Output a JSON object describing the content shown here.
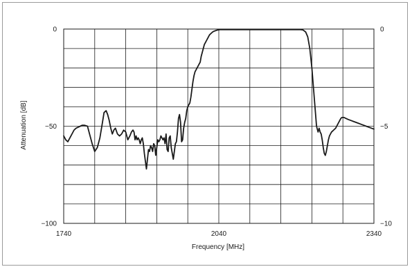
{
  "chart_data": {
    "type": "line",
    "title": "",
    "xlabel": "Frequency [MHz]",
    "ylabel": "Attenuation [dB]",
    "xlim": [
      1740,
      2340
    ],
    "ylim": [
      -100,
      0
    ],
    "y2lim": [
      -10,
      0
    ],
    "grid": true,
    "x_tick_labels": [
      "1740",
      "2040",
      "2340"
    ],
    "y_tick_labels": [
      "0",
      "−50",
      "−100"
    ],
    "y2_tick_labels": [
      "0",
      "−5",
      "−10"
    ],
    "colors": {
      "line": "#1a1a1a",
      "grid": "#1a1a1a"
    },
    "series": [
      {
        "x": [
          1740,
          1744,
          1748,
          1752,
          1756,
          1760,
          1764,
          1768,
          1772,
          1776,
          1780,
          1786,
          1790,
          1795,
          1800,
          1805,
          1810,
          1815,
          1818,
          1822,
          1825,
          1828,
          1831,
          1834,
          1837,
          1840,
          1844,
          1848,
          1852,
          1856,
          1860,
          1864,
          1868,
          1871,
          1874,
          1876,
          1878,
          1880,
          1882,
          1884,
          1886,
          1888,
          1890,
          1892,
          1894,
          1896,
          1898,
          1900,
          1902,
          1904,
          1906,
          1908,
          1910,
          1912,
          1914,
          1916,
          1918,
          1920,
          1922,
          1924,
          1926,
          1928,
          1930,
          1932,
          1934,
          1936,
          1938,
          1940,
          1942,
          1944,
          1946,
          1948,
          1950,
          1952,
          1954,
          1956,
          1958,
          1960,
          1962,
          1964,
          1966,
          1968,
          1970,
          1972,
          1974,
          1976,
          1978,
          1980,
          1982,
          1984,
          1986,
          1988,
          1990,
          1992,
          1994,
          1996,
          1998,
          2000,
          2002,
          2004,
          2006,
          2008,
          2010,
          2012,
          2014,
          2016,
          2018,
          2020,
          2022,
          2024,
          2026,
          2028,
          2030,
          2032,
          2034,
          2036,
          2038,
          2040,
          2042,
          2044,
          2046,
          2048,
          2050,
          2052,
          2054,
          2056,
          2058,
          2060,
          2062,
          2064,
          2066,
          2068,
          2070,
          2072,
          2074,
          2076,
          2078,
          2080,
          2082,
          2084,
          2086,
          2088,
          2090,
          2095,
          2100,
          2110,
          2120,
          2130,
          2140,
          2150,
          2160,
          2170,
          2180,
          2190,
          2198,
          2203,
          2208,
          2212,
          2216,
          2220,
          2223,
          2226,
          2229,
          2232,
          2234,
          2236,
          2238,
          2240,
          2242,
          2244,
          2246,
          2248,
          2250,
          2252,
          2254,
          2256,
          2258,
          2260,
          2262,
          2264,
          2266,
          2268,
          2270,
          2272,
          2274,
          2276,
          2278,
          2282,
          2286,
          2290,
          2295,
          2300,
          2305,
          2310,
          2315,
          2320,
          2325,
          2330,
          2335,
          2340
        ],
        "y": [
          -55,
          -57,
          -58,
          -56,
          -54,
          -52,
          -51,
          -50.5,
          -50,
          -49.5,
          -49.5,
          -50,
          -54,
          -59,
          -63,
          -61,
          -56,
          -48,
          -43,
          -42,
          -44,
          -47,
          -51,
          -54,
          -52,
          -51,
          -54,
          -55,
          -54,
          -52,
          -53,
          -57,
          -55,
          -53,
          -52,
          -53,
          -57,
          -55,
          -57,
          -56,
          -57,
          -59,
          -57,
          -56,
          -59,
          -64,
          -68,
          -72,
          -67,
          -62,
          -63,
          -60,
          -61,
          -63,
          -59,
          -60,
          -65,
          -61,
          -57,
          -58,
          -57,
          -55,
          -56,
          -57,
          -56,
          -59,
          -54,
          -62,
          -63,
          -56,
          -55,
          -61,
          -64,
          -67,
          -63,
          -59,
          -58,
          -53,
          -46,
          -44,
          -48,
          -58,
          -57,
          -51,
          -48,
          -46,
          -42,
          -40,
          -39,
          -38,
          -35,
          -31,
          -27,
          -24,
          -22,
          -21,
          -20,
          -19,
          -18,
          -17,
          -14,
          -12,
          -10,
          -8,
          -7,
          -6,
          -5,
          -4,
          -3,
          -2.5,
          -2,
          -1.5,
          -1.2,
          -1,
          -0.8,
          -0.6,
          -0.5,
          -0.4,
          -0.3,
          -0.3,
          -0.3,
          -0.3,
          -0.3,
          -0.3,
          -0.3,
          -0.3,
          -0.3,
          -0.3,
          -0.3,
          -0.3,
          -0.3,
          -0.3,
          -0.3,
          -0.3,
          -0.3,
          -0.3,
          -0.3,
          -0.3,
          -0.3,
          -0.3,
          -0.3,
          -0.3,
          -0.3,
          -0.3,
          -0.3,
          -0.3,
          -0.3,
          -0.3,
          -0.3,
          -0.3,
          -0.3,
          -0.3,
          -0.3,
          -0.3,
          -0.3,
          -0.5,
          -1.5,
          -4,
          -10,
          -20,
          -30,
          -40,
          -50,
          -53,
          -51,
          -53,
          -54,
          -57,
          -61,
          -64,
          -65,
          -63,
          -60,
          -57,
          -55,
          -54,
          -53,
          -52.5,
          -52,
          -51.5,
          -51,
          -50,
          -49,
          -48,
          -47,
          -46,
          -45.5,
          -45.5,
          -46,
          -46.5,
          -47,
          -47.5,
          -48,
          -48.5,
          -49,
          -49.5,
          -50,
          -50.5,
          -51,
          -51.5
        ]
      }
    ]
  }
}
